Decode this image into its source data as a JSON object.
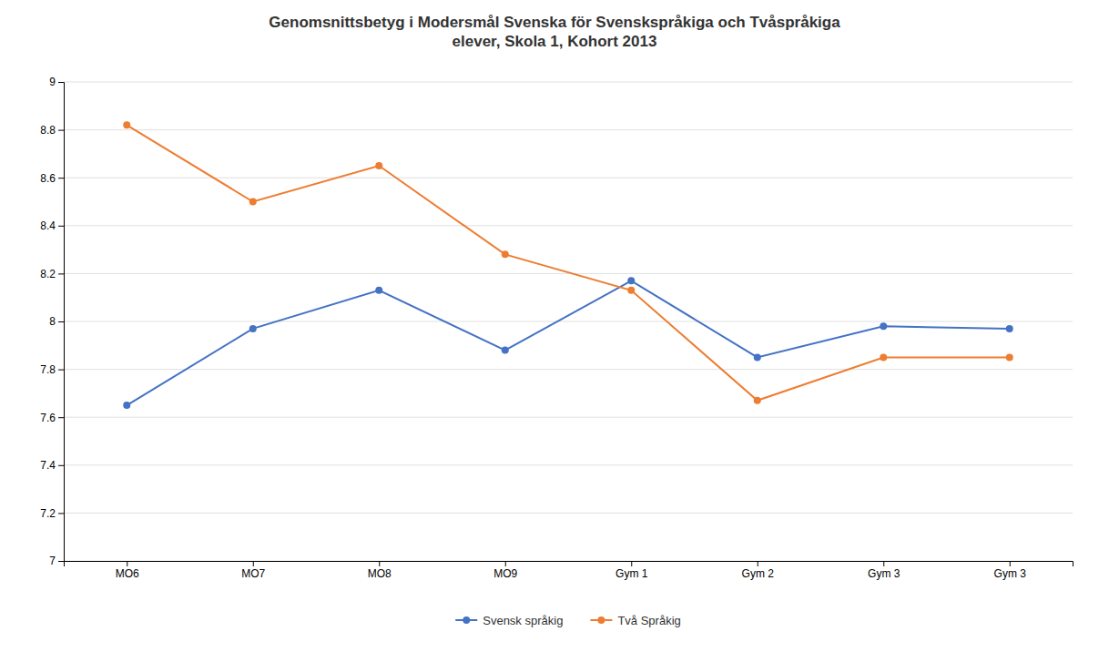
{
  "chart_data": {
    "type": "line",
    "title": "Genomsnittsbetyg i Modersmål Svenska för Svenskspråkiga och Tvåspråkiga\nelever, Skola 1, Kohort 2013",
    "categories": [
      "MO6",
      "MO7",
      "MO8",
      "MO9",
      "Gym 1",
      "Gym 2",
      "Gym 3",
      "Gym 3"
    ],
    "series": [
      {
        "name": "Svensk språkig",
        "color": "#4472C4",
        "values": [
          7.65,
          7.97,
          8.13,
          7.88,
          8.17,
          7.85,
          7.98,
          7.97
        ]
      },
      {
        "name": "Två Språkig",
        "color": "#ED7D31",
        "values": [
          8.82,
          8.5,
          8.65,
          8.28,
          8.13,
          7.67,
          7.85,
          7.85
        ]
      }
    ],
    "ylim": [
      7,
      9
    ],
    "yticks": [
      7,
      7.2,
      7.4,
      7.6,
      7.8,
      8,
      8.2,
      8.4,
      8.6,
      8.8,
      9
    ],
    "grid": true,
    "legend": "bottom",
    "marker": "circle"
  }
}
